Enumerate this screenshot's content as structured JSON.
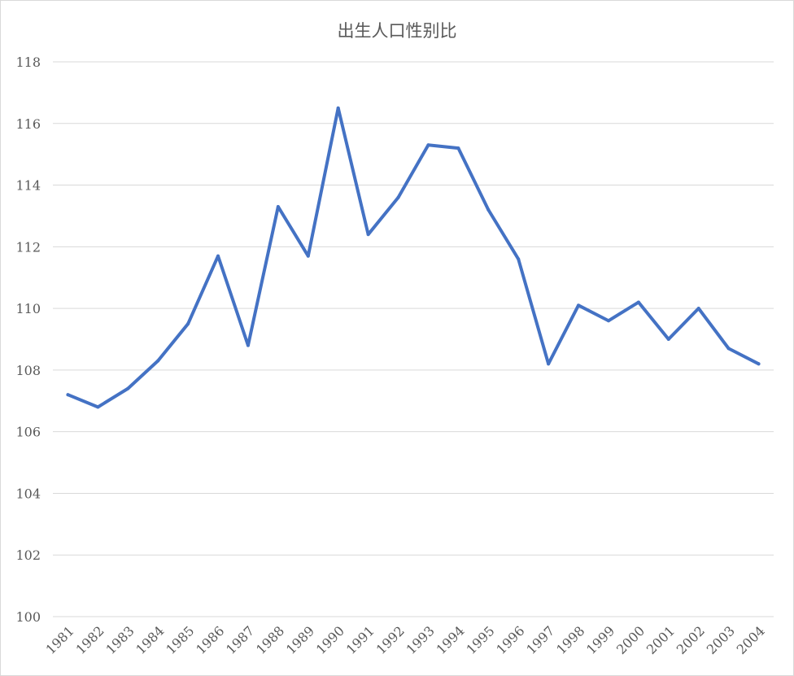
{
  "chart_data": {
    "type": "line",
    "title": "出生人口性别比",
    "xlabel": "",
    "ylabel": "",
    "categories": [
      "1981",
      "1982",
      "1983",
      "1984",
      "1985",
      "1986",
      "1987",
      "1988",
      "1989",
      "1990",
      "1991",
      "1992",
      "1993",
      "1994",
      "1995",
      "1996",
      "1997",
      "1998",
      "1999",
      "2000",
      "2001",
      "2002",
      "2003",
      "2004"
    ],
    "series": [
      {
        "values": [
          107.2,
          106.8,
          107.4,
          108.3,
          109.5,
          111.7,
          108.8,
          113.3,
          111.7,
          116.5,
          112.4,
          113.6,
          115.3,
          115.2,
          113.2,
          111.6,
          108.2,
          110.1,
          109.6,
          110.2,
          109.0,
          110.0,
          108.7,
          108.2
        ],
        "color": "#4472c4"
      }
    ],
    "ylim": [
      100,
      118
    ],
    "yticks": [
      "100",
      "102",
      "104",
      "106",
      "108",
      "110",
      "112",
      "114",
      "116",
      "118"
    ],
    "grid": true,
    "legend": "none"
  }
}
